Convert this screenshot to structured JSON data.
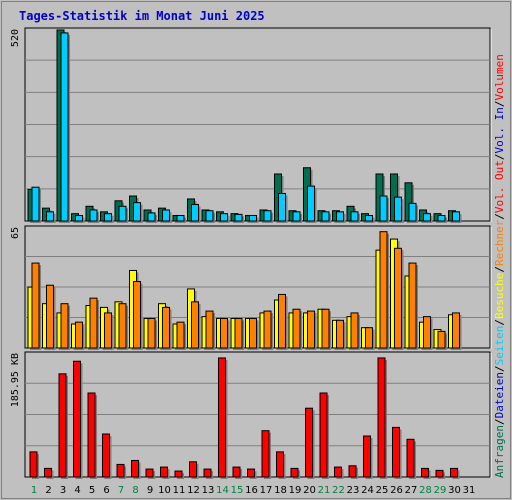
{
  "title": "Tages-Statistik im Monat Juni 2025",
  "chart_data": [
    {
      "type": "bar",
      "panel": "top",
      "ylabel_max": "520",
      "ymax": 520,
      "grid": true,
      "series": [
        {
          "name": "Anfragen",
          "color": "#006f4f",
          "values": [
            86,
            35,
            520,
            20,
            40,
            25,
            55,
            68,
            30,
            35,
            15,
            60,
            30,
            25,
            20,
            15,
            30,
            128,
            28,
            145,
            28,
            28,
            40,
            20,
            128,
            128,
            104,
            30,
            20,
            28
          ]
        },
        {
          "name": "Seiten",
          "color": "#00ccff",
          "values": [
            92,
            25,
            512,
            15,
            30,
            20,
            40,
            50,
            22,
            30,
            15,
            45,
            28,
            20,
            18,
            15,
            28,
            75,
            25,
            95,
            25,
            25,
            25,
            15,
            68,
            65,
            48,
            20,
            15,
            25
          ]
        },
        {
          "name": "Dateien",
          "color": "#0000cc",
          "values": []
        }
      ]
    },
    {
      "type": "bar",
      "panel": "middle",
      "ylabel_max": "65",
      "ymax": 65,
      "grid": true,
      "series": [
        {
          "name": "Besuche",
          "color": "#ffff00",
          "values": [
            33,
            24,
            19,
            13,
            23,
            22,
            25,
            42,
            16,
            24,
            13,
            32,
            17,
            16,
            16,
            16,
            19,
            26,
            19,
            19,
            21,
            15,
            17,
            11,
            53,
            59,
            39,
            14,
            10,
            18
          ]
        },
        {
          "name": "Rechner",
          "color": "#ff8000",
          "values": [
            46,
            34,
            24,
            14,
            27,
            19,
            24,
            36,
            16,
            22,
            14,
            25,
            20,
            16,
            16,
            16,
            20,
            29,
            21,
            20,
            21,
            15,
            19,
            11,
            63,
            54,
            46,
            17,
            9,
            19
          ]
        }
      ]
    },
    {
      "type": "bar",
      "panel": "bottom",
      "ylabel_max": "185.95 KB",
      "ymax": 185.95,
      "grid": true,
      "series": [
        {
          "name": "Volumen",
          "color": "#ff0000",
          "values": [
            38,
            13,
            156,
            175,
            127,
            65,
            19,
            25,
            12,
            15,
            9,
            23,
            12,
            180,
            15,
            12,
            70,
            38,
            13,
            104,
            127,
            15,
            17,
            62,
            180,
            75,
            57,
            13,
            10,
            13
          ]
        },
        {
          "name": "Vol. In",
          "color": "#0000cc",
          "values": []
        },
        {
          "name": "Vol. Out",
          "color": "#ff0000",
          "values": []
        }
      ]
    }
  ],
  "days": [
    "1",
    "2",
    "3",
    "4",
    "5",
    "6",
    "7",
    "8",
    "9",
    "10",
    "11",
    "12",
    "13",
    "14",
    "15",
    "16",
    "17",
    "18",
    "19",
    "20",
    "21",
    "22",
    "23",
    "24",
    "25",
    "26",
    "27",
    "28",
    "29",
    "30",
    "31"
  ],
  "weekend_days": [
    1,
    7,
    8,
    14,
    15,
    21,
    22,
    28,
    29
  ],
  "day_colors": {
    "weekday": "#000000",
    "weekend": "#008040"
  },
  "legend_right": [
    {
      "text": "Anfragen",
      "color": "#006f4f"
    },
    {
      "text": "/",
      "color": "#000000"
    },
    {
      "text": "Dateien",
      "color": "#0000cc"
    },
    {
      "text": "/",
      "color": "#000000"
    },
    {
      "text": "Seiten",
      "color": "#00ccff"
    },
    {
      "text": "/",
      "color": "#000000"
    },
    {
      "text": "Besuche",
      "color": "#ffff00"
    },
    {
      "text": "/",
      "color": "#000000"
    },
    {
      "text": "Rechner",
      "color": "#ff8000"
    },
    {
      "text": "/",
      "color": "#000000"
    },
    {
      "text": "Vol. Out",
      "color": "#ff0000"
    },
    {
      "text": "/",
      "color": "#000000"
    },
    {
      "text": "Vol. In",
      "color": "#0000cc"
    },
    {
      "text": "/",
      "color": "#000000"
    },
    {
      "text": "Volumen",
      "color": "#ff0000"
    }
  ]
}
